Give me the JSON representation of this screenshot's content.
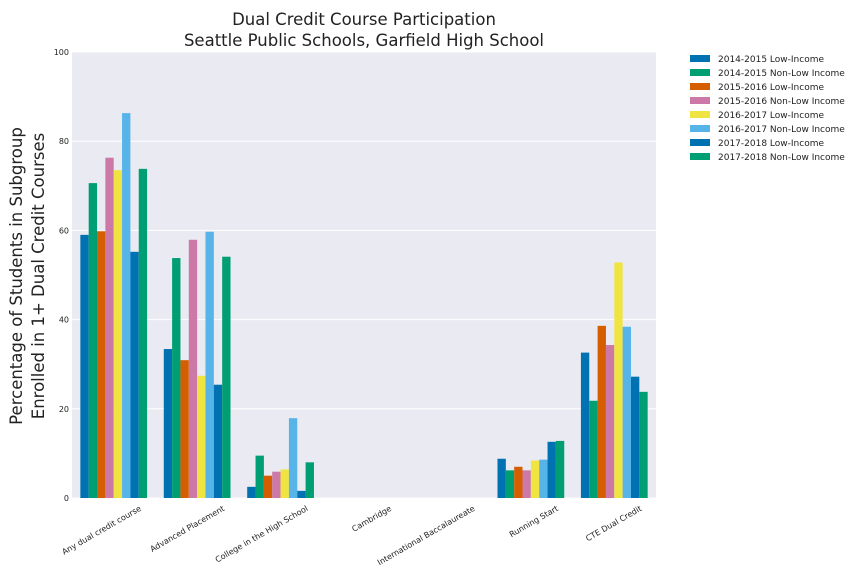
{
  "chart_data": {
    "type": "bar",
    "title": "Dual Credit Course Participation",
    "subtitle": "Seattle Public Schools, Garfield High School",
    "ylabel_line1": "Percentage of Students in Subgroup",
    "ylabel_line2": "Enrolled in 1+ Dual Credit Courses",
    "xlabel": "",
    "ylim": [
      0,
      100
    ],
    "yticks": [
      0,
      20,
      40,
      60,
      80,
      100
    ],
    "grid": true,
    "legend_position": "outside top-right",
    "categories": [
      "Any dual credit course",
      "Advanced Placement",
      "College in the High School",
      "Cambridge",
      "International Baccalaureate",
      "Running Start",
      "CTE Dual Credit"
    ],
    "series": [
      {
        "name": "2014-2015 Low-Income",
        "color": "#0072b2",
        "values": [
          59.0,
          33.4,
          2.5,
          0,
          0,
          8.8,
          32.6
        ]
      },
      {
        "name": "2014-2015 Non-Low Income",
        "color": "#009e73",
        "values": [
          70.6,
          53.8,
          9.5,
          0,
          0,
          6.2,
          21.8
        ]
      },
      {
        "name": "2015-2016 Low-Income",
        "color": "#d55e00",
        "values": [
          59.8,
          30.9,
          5.0,
          0,
          0,
          7.0,
          38.6
        ]
      },
      {
        "name": "2015-2016 Non-Low Income",
        "color": "#cc79a7",
        "values": [
          76.3,
          57.9,
          5.9,
          0,
          0,
          6.2,
          34.3
        ]
      },
      {
        "name": "2016-2017 Low-Income",
        "color": "#f0e442",
        "values": [
          73.5,
          27.4,
          6.4,
          0,
          0,
          8.4,
          52.8
        ]
      },
      {
        "name": "2016-2017 Non-Low Income",
        "color": "#56b4e9",
        "values": [
          86.3,
          59.7,
          17.9,
          0,
          0,
          8.6,
          38.4
        ]
      },
      {
        "name": "2017-2018 Low-Income",
        "color": "#0072b2",
        "values": [
          55.2,
          25.4,
          1.6,
          0,
          0,
          12.6,
          27.2
        ]
      },
      {
        "name": "2017-2018 Non-Low Income",
        "color": "#009e73",
        "values": [
          73.8,
          54.1,
          8.0,
          0,
          0,
          12.8,
          23.8
        ]
      }
    ]
  },
  "colors": {
    "plot_background": "#eaeaf2",
    "grid": "#ffffff",
    "text": "#222222"
  }
}
